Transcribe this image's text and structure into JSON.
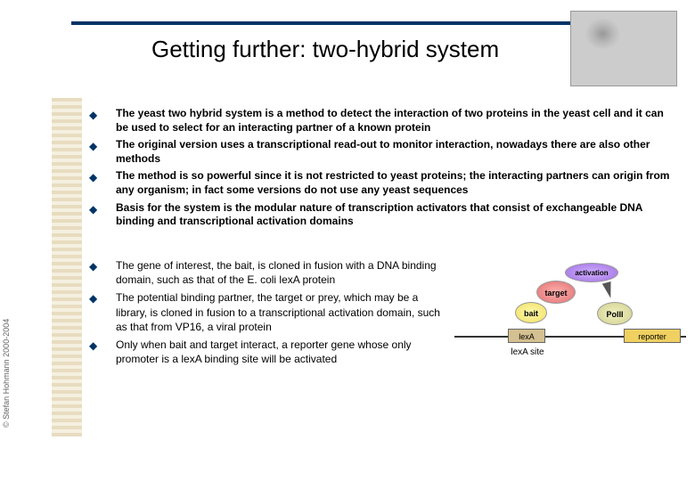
{
  "title": "Getting further: two-hybrid system",
  "copyright": "© Stefan Hohmann 2000-2004",
  "top_bullets": [
    "The yeast two hybrid system is a method to detect the interaction of two proteins in the yeast cell and it can be used to select for an interacting partner of a known protein",
    "The original version uses a transcriptional read-out to monitor interaction, nowadays there are also other methods",
    "The method is so powerful since it is not restricted to yeast proteins; the interacting partners can origin from any organism; in fact some versions do not use any yeast sequences",
    "Basis for the system is the modular nature of transcription activators that consist of exchangeable DNA binding and transcriptional activation domains"
  ],
  "bottom_bullets": [
    "The gene of interest, the bait, is cloned in fusion with a DNA binding domain, such as that of the E. coli lexA protein",
    "The potential binding partner, the target or prey, which may be a library, is cloned in fusion to a transcriptional activation domain, such as that from VP16, a viral protein",
    "Only when bait and target interact, a reporter gene whose only promoter is a lexA binding site will be activated"
  ],
  "diagram": {
    "lexa": "lexA",
    "reporter": "reporter",
    "lexa_site": "lexA site",
    "bait": "bait",
    "target": "target",
    "activation": "activation",
    "polii": "PolII"
  },
  "colors": {
    "rule": "#003366",
    "strip_a": "#e8dcc0",
    "strip_b": "#f5f0e0"
  }
}
